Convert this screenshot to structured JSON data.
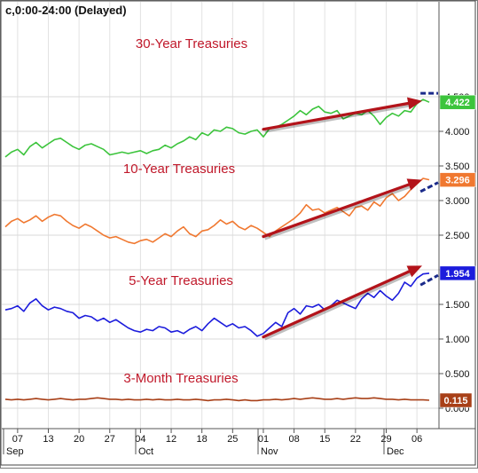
{
  "header": {
    "title": "c,0:00-24:00 (Delayed)"
  },
  "chart_data": {
    "type": "line",
    "x_ticks": [
      "07",
      "13",
      "20",
      "27",
      "04",
      "12",
      "18",
      "25",
      "01",
      "08",
      "15",
      "22",
      "29",
      "06"
    ],
    "month_labels": [
      "Sep",
      "Oct",
      "Nov",
      "Dec"
    ],
    "y_ticks": [
      "4.500",
      "4.000",
      "3.500",
      "3.000",
      "2.500",
      "2.000",
      "1.500",
      "1.000",
      "0.500",
      "0.000"
    ],
    "series": [
      {
        "name": "30-Year Treasuries",
        "color": "#3cc43c",
        "last_label": "4.422",
        "values": [
          3.63,
          3.7,
          3.74,
          3.66,
          3.78,
          3.84,
          3.76,
          3.82,
          3.88,
          3.9,
          3.84,
          3.78,
          3.74,
          3.8,
          3.82,
          3.78,
          3.74,
          3.66,
          3.68,
          3.7,
          3.68,
          3.7,
          3.72,
          3.68,
          3.72,
          3.74,
          3.8,
          3.76,
          3.82,
          3.86,
          3.92,
          3.88,
          3.98,
          3.94,
          4.02,
          4.0,
          4.06,
          4.04,
          3.98,
          3.96,
          4.0,
          4.02,
          3.92,
          4.04,
          4.06,
          4.1,
          4.16,
          4.22,
          4.3,
          4.24,
          4.32,
          4.36,
          4.28,
          4.26,
          4.3,
          4.18,
          4.22,
          4.26,
          4.24,
          4.3,
          4.22,
          4.1,
          4.2,
          4.26,
          4.22,
          4.3,
          4.28,
          4.4,
          4.46,
          4.42
        ]
      },
      {
        "name": "10-Year Treasuries",
        "color": "#f07830",
        "last_label": "3.296",
        "values": [
          2.62,
          2.7,
          2.74,
          2.68,
          2.72,
          2.78,
          2.7,
          2.76,
          2.8,
          2.78,
          2.7,
          2.64,
          2.6,
          2.66,
          2.62,
          2.56,
          2.5,
          2.46,
          2.48,
          2.44,
          2.4,
          2.38,
          2.42,
          2.44,
          2.4,
          2.46,
          2.52,
          2.48,
          2.56,
          2.62,
          2.52,
          2.48,
          2.56,
          2.58,
          2.64,
          2.72,
          2.66,
          2.7,
          2.62,
          2.58,
          2.64,
          2.6,
          2.54,
          2.48,
          2.56,
          2.62,
          2.68,
          2.74,
          2.82,
          2.94,
          2.86,
          2.88,
          2.82,
          2.86,
          2.9,
          2.84,
          2.78,
          2.9,
          2.92,
          2.86,
          2.98,
          2.92,
          3.04,
          3.1,
          3.0,
          3.06,
          3.16,
          3.24,
          3.32,
          3.3
        ]
      },
      {
        "name": "5-Year Treasuries",
        "color": "#1c1cdc",
        "last_label": "1.954",
        "values": [
          1.42,
          1.44,
          1.48,
          1.4,
          1.52,
          1.58,
          1.48,
          1.42,
          1.46,
          1.44,
          1.4,
          1.38,
          1.3,
          1.34,
          1.32,
          1.26,
          1.3,
          1.24,
          1.28,
          1.22,
          1.16,
          1.12,
          1.1,
          1.14,
          1.12,
          1.18,
          1.16,
          1.1,
          1.12,
          1.08,
          1.14,
          1.18,
          1.12,
          1.22,
          1.3,
          1.24,
          1.18,
          1.22,
          1.16,
          1.18,
          1.12,
          1.04,
          1.08,
          1.16,
          1.24,
          1.18,
          1.38,
          1.44,
          1.36,
          1.48,
          1.46,
          1.5,
          1.42,
          1.48,
          1.56,
          1.52,
          1.48,
          1.44,
          1.58,
          1.66,
          1.6,
          1.7,
          1.62,
          1.56,
          1.66,
          1.82,
          1.76,
          1.88,
          1.94,
          1.95
        ]
      },
      {
        "name": "3-Month Treasuries",
        "color": "#a84018",
        "last_label": "0.115",
        "values": [
          0.13,
          0.12,
          0.13,
          0.12,
          0.13,
          0.14,
          0.13,
          0.12,
          0.13,
          0.14,
          0.13,
          0.12,
          0.13,
          0.13,
          0.14,
          0.15,
          0.14,
          0.13,
          0.13,
          0.12,
          0.13,
          0.12,
          0.12,
          0.13,
          0.12,
          0.13,
          0.12,
          0.12,
          0.13,
          0.12,
          0.12,
          0.13,
          0.12,
          0.11,
          0.12,
          0.12,
          0.13,
          0.12,
          0.11,
          0.12,
          0.11,
          0.11,
          0.12,
          0.12,
          0.13,
          0.12,
          0.13,
          0.14,
          0.13,
          0.14,
          0.15,
          0.14,
          0.13,
          0.13,
          0.14,
          0.13,
          0.14,
          0.15,
          0.14,
          0.14,
          0.15,
          0.14,
          0.13,
          0.13,
          0.12,
          0.13,
          0.12,
          0.12,
          0.12,
          0.115
        ]
      }
    ],
    "trend_arrows": [
      {
        "from": [
          42,
          4.03
        ],
        "to": [
          69,
          4.44
        ]
      },
      {
        "from": [
          42,
          2.48
        ],
        "to": [
          69,
          3.3
        ]
      },
      {
        "from": [
          42,
          1.03
        ],
        "to": [
          69,
          2.06
        ]
      }
    ],
    "forecast_dashes": [
      {
        "from": [
          67,
          4.55
        ],
        "to": [
          69,
          4.55
        ]
      },
      {
        "from": [
          67,
          3.13
        ],
        "to": [
          69,
          3.26
        ]
      },
      {
        "from": [
          67,
          1.78
        ],
        "to": [
          69,
          1.92
        ]
      }
    ]
  }
}
